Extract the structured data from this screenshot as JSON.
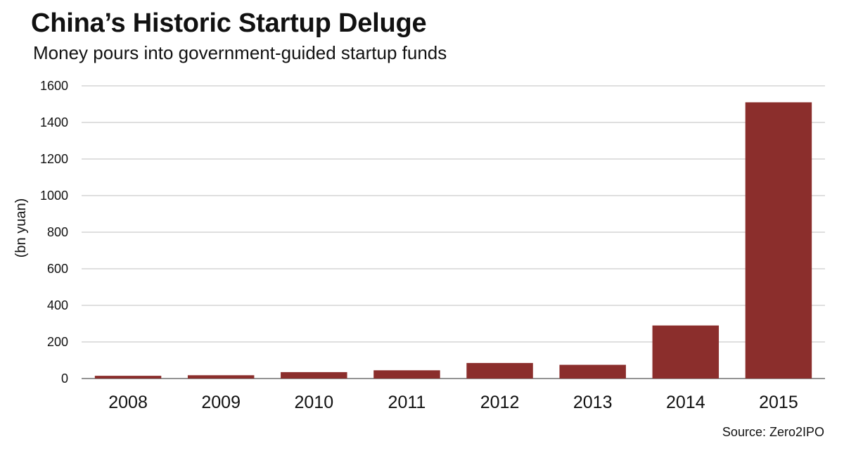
{
  "header": {
    "title": "China’s Historic Startup Deluge",
    "subtitle": "Money pours into government-guided startup funds"
  },
  "footer": {
    "source": "Source: Zero2IPO"
  },
  "chart_data": {
    "type": "bar",
    "title": "China’s Historic Startup Deluge",
    "subtitle": "Money pours into government-guided startup funds",
    "xlabel": "",
    "ylabel": "(bn yuan)",
    "categories": [
      "2008",
      "2009",
      "2010",
      "2011",
      "2012",
      "2013",
      "2014",
      "2015"
    ],
    "values": [
      15,
      18,
      35,
      45,
      85,
      75,
      290,
      1510
    ],
    "ylim": [
      0,
      1600
    ],
    "yticks": [
      0,
      200,
      400,
      600,
      800,
      1000,
      1200,
      1400,
      1600
    ],
    "grid": true,
    "bar_color": "#8b2e2c",
    "grid_color": "#bfbfbf",
    "legend": "none"
  }
}
